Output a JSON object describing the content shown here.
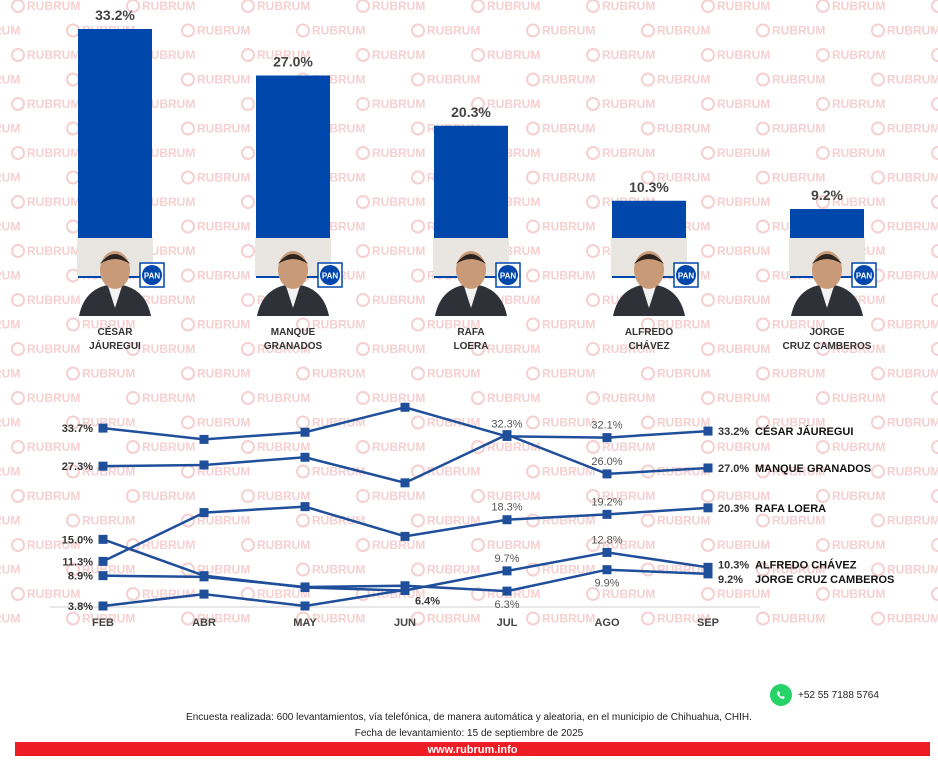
{
  "watermark": {
    "text": "RUBRUM"
  },
  "chart_data": [
    {
      "type": "bar",
      "categories": [
        "CÉSAR JÁUREGUI",
        "MANQUE GRANADOS",
        "RAFA LOERA",
        "ALFREDO CHÁVEZ",
        "JORGE CRUZ CAMBEROS"
      ],
      "category_lines": [
        [
          "CÉSAR",
          "JÁUREGUI"
        ],
        [
          "MANQUE",
          "GRANADOS"
        ],
        [
          "RAFA",
          "LOERA"
        ],
        [
          "ALFREDO",
          "CHÁVEZ"
        ],
        [
          "JORGE",
          "CRUZ CAMBEROS"
        ]
      ],
      "values": [
        33.2,
        27.0,
        20.3,
        10.3,
        9.2
      ],
      "value_labels": [
        "33.2%",
        "27.0%",
        "20.3%",
        "10.3%",
        "9.2%"
      ],
      "party_badges": [
        "PAN",
        "PAN",
        "PAN",
        "PAN",
        "PAN"
      ],
      "bar_color": "#0047ab"
    },
    {
      "type": "line",
      "x": [
        "FEB",
        "ABR",
        "MAY",
        "JUN",
        "JUL",
        "AGO",
        "SEP"
      ],
      "line_color": "#1f4e9a",
      "series": [
        {
          "name": "CÉSAR JÁUREGUI",
          "values": [
            33.7,
            31.8,
            33.0,
            37.2,
            32.3,
            32.1,
            33.2
          ]
        },
        {
          "name": "MANQUE GRANADOS",
          "values": [
            27.3,
            27.5,
            28.8,
            24.5,
            32.6,
            26.0,
            27.0
          ]
        },
        {
          "name": "RAFA LOERA",
          "values": [
            11.3,
            19.5,
            20.5,
            15.5,
            18.3,
            19.2,
            20.3
          ]
        },
        {
          "name": "ALFREDO CHÁVEZ",
          "values": [
            15.0,
            8.9,
            6.9,
            6.4,
            9.7,
            12.8,
            10.3
          ]
        },
        {
          "name": "JORGE CRUZ CAMBEROS",
          "values": [
            8.9,
            8.7,
            7.0,
            7.2,
            6.3,
            9.9,
            9.2
          ]
        },
        {
          "name": "",
          "values": [
            3.8,
            5.8,
            3.8,
            6.5,
            null,
            null,
            null
          ]
        }
      ],
      "point_labels": [
        {
          "text": "33.7%",
          "series": 0,
          "i": 0,
          "pos": "left",
          "bold": true
        },
        {
          "text": "27.3%",
          "series": 1,
          "i": 0,
          "pos": "left",
          "bold": true
        },
        {
          "text": "15.0%",
          "series": 3,
          "i": 0,
          "pos": "left",
          "bold": true
        },
        {
          "text": "11.3%",
          "series": 2,
          "i": 0,
          "pos": "left",
          "bold": true
        },
        {
          "text": "8.9%",
          "series": 4,
          "i": 0,
          "pos": "left",
          "bold": true
        },
        {
          "text": "3.8%",
          "series": 5,
          "i": 0,
          "pos": "left",
          "bold": true
        },
        {
          "text": "32.3%",
          "series": 0,
          "i": 4,
          "pos": "above",
          "bold": false
        },
        {
          "text": "32.1%",
          "series": 0,
          "i": 5,
          "pos": "above",
          "bold": false
        },
        {
          "text": "26.0%",
          "series": 1,
          "i": 5,
          "pos": "above",
          "bold": false
        },
        {
          "text": "18.3%",
          "series": 2,
          "i": 4,
          "pos": "above",
          "bold": false
        },
        {
          "text": "19.2%",
          "series": 2,
          "i": 5,
          "pos": "above",
          "bold": false
        },
        {
          "text": "9.7%",
          "series": 3,
          "i": 4,
          "pos": "above",
          "bold": false
        },
        {
          "text": "12.8%",
          "series": 3,
          "i": 5,
          "pos": "above",
          "bold": false
        },
        {
          "text": "6.3%",
          "series": 4,
          "i": 4,
          "pos": "below",
          "bold": false
        },
        {
          "text": "9.9%",
          "series": 4,
          "i": 5,
          "pos": "below",
          "bold": false
        },
        {
          "text": "6.4%",
          "series": 3,
          "i": 3,
          "pos": "right-below",
          "bold": true
        }
      ],
      "end_labels": [
        {
          "value": "33.2%",
          "name": "CÉSAR JÁUREGUI",
          "series": 0
        },
        {
          "value": "27.0%",
          "name": "MANQUE GRANADOS",
          "series": 1
        },
        {
          "value": "20.3%",
          "name": "RAFA LOERA",
          "series": 2
        },
        {
          "value": "10.3%",
          "name": "ALFREDO CHÁVEZ",
          "series": 3
        },
        {
          "value": "9.2%",
          "name": "JORGE CRUZ CAMBEROS",
          "series": 4
        }
      ]
    }
  ],
  "footer": {
    "note_line1": "Encuesta realizada: 600 levantamientos, vía telefónica, de manera automática y aleatoria, en el municipio de Chihuahua, CHIH.",
    "note_line2": "Fecha de levantamiento: 15 de septiembre de 2025",
    "website": "www.rubrum.info",
    "phone": "+52 55 7188 5764"
  },
  "colors": {
    "accent_red": "#ee1c24",
    "bar_blue": "#0047ab",
    "whatsapp_green": "#25d366"
  }
}
